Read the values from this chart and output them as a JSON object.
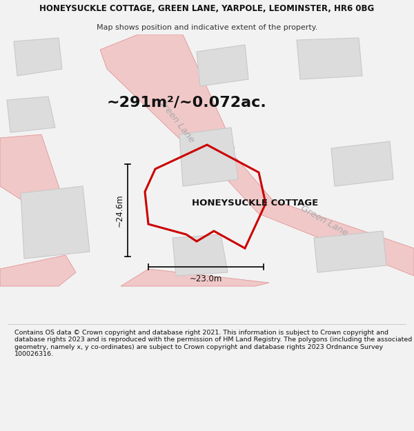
{
  "title_line1": "HONEYSUCKLE COTTAGE, GREEN LANE, YARPOLE, LEOMINSTER, HR6 0BG",
  "title_line2": "Map shows position and indicative extent of the property.",
  "area_text": "~291m²/~0.072ac.",
  "property_label": "HONEYSUCKLE COTTAGE",
  "dim_vertical": "~24.6m",
  "dim_horizontal": "~23.0m",
  "footer_text": "Contains OS data © Crown copyright and database right 2021. This information is subject to Crown copyright and database rights 2023 and is reproduced with the permission of HM Land Registry. The polygons (including the associated geometry, namely x, y co-ordinates) are subject to Crown copyright and database rights 2023 Ordnance Survey 100026316.",
  "bg_color": "#f2f2f2",
  "map_bg": "#f2f2f2",
  "property_polygon_color": "#cc0000",
  "road_color": "#f0c8c8",
  "road_edge_color": "#e08888",
  "building_fill": "#dcdcdc",
  "building_edge": "#c8c8c8",
  "road_label_color": "#aaaaaa",
  "title_fontsize": 8.5,
  "subtitle_fontsize": 8.0,
  "area_fontsize": 16,
  "label_fontsize": 9.5,
  "dim_fontsize": 8.5,
  "footer_fontsize": 6.8
}
